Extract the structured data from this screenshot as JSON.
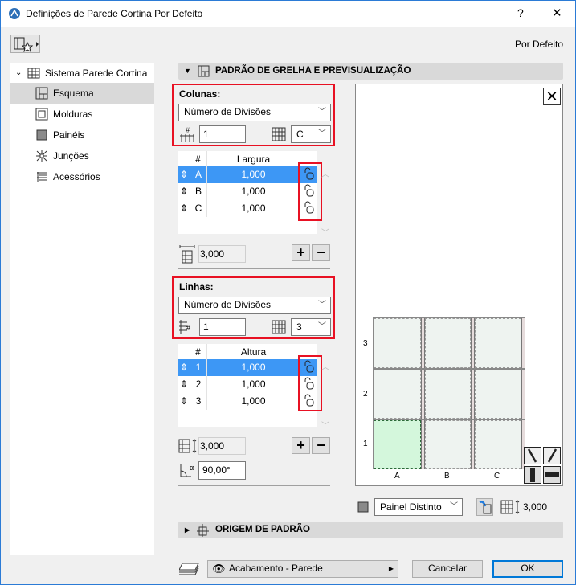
{
  "window": {
    "title": "Definições de Parede Cortina Por Defeito",
    "help": "?",
    "close": "✕"
  },
  "header": {
    "defaults_label": "Por Defeito"
  },
  "sidebar": {
    "root": "Sistema Parede Cortina",
    "items": [
      {
        "label": "Esquema",
        "selected": true
      },
      {
        "label": "Molduras"
      },
      {
        "label": "Painéis"
      },
      {
        "label": "Junções"
      },
      {
        "label": "Acessórios"
      }
    ]
  },
  "section": {
    "title": "PADRÃO DE GRELHA E PREVISUALIZAÇÃO",
    "origin_title": "ORIGEM DE PADRÃO"
  },
  "columns": {
    "label": "Colunas:",
    "mode": "Número de Divisões",
    "count": "1",
    "pattern": "C",
    "table": {
      "headers": [
        "#",
        "Largura"
      ],
      "rows": [
        {
          "id": "A",
          "value": "1,000",
          "selected": true
        },
        {
          "id": "B",
          "value": "1,000"
        },
        {
          "id": "C",
          "value": "1,000"
        }
      ]
    },
    "total": "3,000"
  },
  "rows": {
    "label": "Linhas:",
    "mode": "Número de Divisões",
    "count": "1",
    "pattern": "3",
    "table": {
      "headers": [
        "#",
        "Altura"
      ],
      "rows": [
        {
          "id": "1",
          "value": "1,000",
          "selected": true
        },
        {
          "id": "2",
          "value": "1,000"
        },
        {
          "id": "3",
          "value": "1,000"
        }
      ]
    },
    "total": "3,000",
    "angle": "90,00°"
  },
  "preview": {
    "row_labels": [
      "3",
      "2",
      "1"
    ],
    "col_labels": [
      "A",
      "B",
      "C"
    ],
    "highlight_color": "#d4f7dc",
    "panel_color": "#eef3f0"
  },
  "panel_type": {
    "value": "Painel Distinto",
    "size": "3,000"
  },
  "footer": {
    "layer": "Acabamento - Parede",
    "cancel": "Cancelar",
    "ok": "OK"
  },
  "colors": {
    "accent": "#3d97f5",
    "highlight_box": "#e81123",
    "ok_border": "#0078d7"
  }
}
